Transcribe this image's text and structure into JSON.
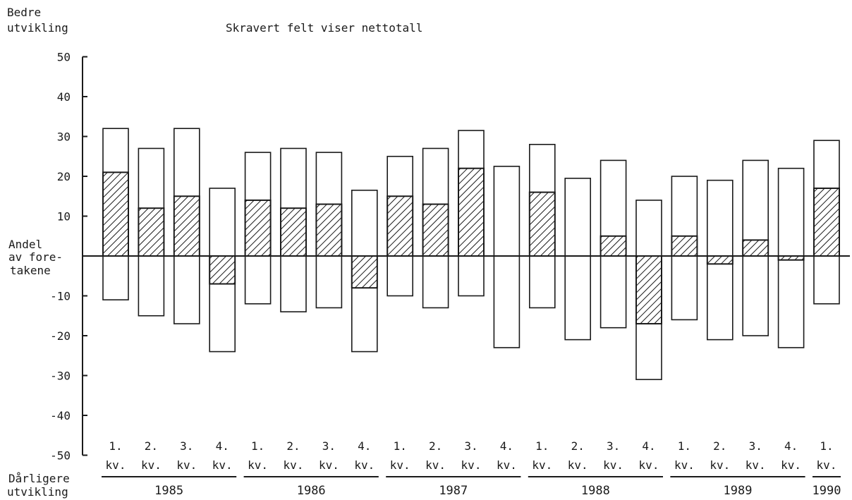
{
  "chart_data": {
    "type": "bar",
    "title": "Skravert felt viser nettotall",
    "ylabel_top": [
      "Bedre",
      "utvikling"
    ],
    "ylabel_middle": [
      "Andel",
      "av fore-",
      "takene"
    ],
    "ylabel_bottom": [
      "Dårligere",
      "utvikling"
    ],
    "ylim": [
      -50,
      50
    ],
    "yticks": [
      50,
      40,
      30,
      20,
      10,
      -10,
      -20,
      -30,
      -40,
      -50
    ],
    "quarter_labels": [
      "1.",
      "2.",
      "3.",
      "4.",
      "1.",
      "2.",
      "3.",
      "4.",
      "1.",
      "2.",
      "3.",
      "4.",
      "1.",
      "2.",
      "3.",
      "4.",
      "1.",
      "2.",
      "3.",
      "4.",
      "1."
    ],
    "kv_label": "kv.",
    "years": [
      "1985",
      "1986",
      "1987",
      "1988",
      "1989",
      "1990"
    ],
    "year_quarter_counts": [
      4,
      4,
      4,
      4,
      4,
      1
    ],
    "series": [
      {
        "name": "Bedre",
        "values": [
          32,
          27,
          32,
          17,
          26,
          27,
          26,
          16.5,
          25,
          27,
          31.5,
          22.5,
          28,
          19.5,
          24,
          14,
          20,
          19,
          24,
          22,
          29
        ]
      },
      {
        "name": "Dårligere",
        "values": [
          -11,
          -15,
          -17,
          -24,
          -12,
          -14,
          -13,
          -24,
          -10,
          -13,
          -10,
          -23,
          -13,
          -21,
          -18,
          -31,
          -16,
          -21,
          -20,
          -23,
          -12
        ]
      },
      {
        "name": "Netto",
        "values": [
          21,
          12,
          15,
          -7,
          14,
          12,
          13,
          -8,
          15,
          13,
          22,
          0,
          16,
          0,
          5,
          -17,
          5,
          -2,
          4,
          -1,
          17
        ]
      }
    ]
  }
}
